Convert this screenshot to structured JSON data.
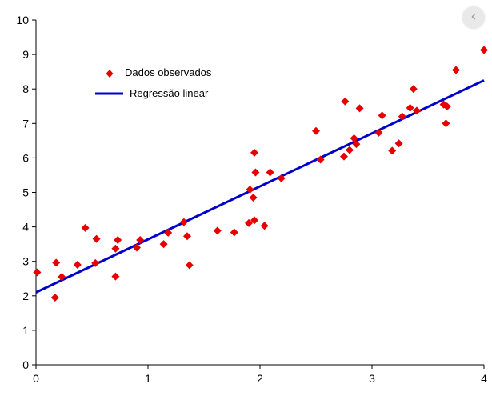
{
  "overlay": {
    "icon": "chevron-left-icon",
    "glyph": "‹"
  },
  "chart_data": {
    "type": "scatter",
    "title": "",
    "xlabel": "",
    "ylabel": "",
    "xlim": [
      0,
      4
    ],
    "ylim": [
      0,
      10
    ],
    "xticks": [
      0,
      1,
      2,
      3,
      4
    ],
    "yticks": [
      0,
      1,
      2,
      3,
      4,
      5,
      6,
      7,
      8,
      9,
      10
    ],
    "grid": false,
    "legend": {
      "placement": "top-left"
    },
    "series": [
      {
        "name": "Dados observados",
        "kind": "scatter",
        "marker": "diamond",
        "color": "#e60000",
        "points": [
          [
            0.01,
            2.68
          ],
          [
            0.17,
            1.95
          ],
          [
            0.18,
            2.96
          ],
          [
            0.23,
            2.55
          ],
          [
            0.37,
            2.9
          ],
          [
            0.44,
            3.97
          ],
          [
            0.53,
            2.95
          ],
          [
            0.54,
            3.65
          ],
          [
            0.71,
            2.56
          ],
          [
            0.71,
            3.37
          ],
          [
            0.73,
            3.62
          ],
          [
            0.9,
            3.4
          ],
          [
            0.93,
            3.62
          ],
          [
            1.14,
            3.5
          ],
          [
            1.18,
            3.83
          ],
          [
            1.32,
            4.14
          ],
          [
            1.35,
            3.73
          ],
          [
            1.37,
            2.89
          ],
          [
            1.62,
            3.89
          ],
          [
            1.77,
            3.84
          ],
          [
            1.9,
            4.11
          ],
          [
            1.91,
            5.08
          ],
          [
            1.94,
            4.85
          ],
          [
            1.95,
            6.15
          ],
          [
            1.95,
            4.19
          ],
          [
            1.96,
            5.58
          ],
          [
            2.04,
            4.03
          ],
          [
            2.09,
            5.58
          ],
          [
            2.19,
            5.41
          ],
          [
            2.5,
            6.78
          ],
          [
            2.54,
            5.95
          ],
          [
            2.75,
            6.04
          ],
          [
            2.76,
            7.64
          ],
          [
            2.8,
            6.23
          ],
          [
            2.84,
            6.57
          ],
          [
            2.86,
            6.4
          ],
          [
            2.89,
            7.44
          ],
          [
            3.06,
            6.73
          ],
          [
            3.09,
            7.23
          ],
          [
            3.18,
            6.21
          ],
          [
            3.24,
            6.42
          ],
          [
            3.27,
            7.2
          ],
          [
            3.34,
            7.45
          ],
          [
            3.37,
            8.0
          ],
          [
            3.4,
            7.37
          ],
          [
            3.64,
            7.55
          ],
          [
            3.66,
            7.0
          ],
          [
            3.67,
            7.49
          ],
          [
            3.75,
            8.55
          ],
          [
            4.0,
            9.13
          ]
        ]
      },
      {
        "name": "Regressão linear",
        "kind": "line",
        "color": "#0000cc",
        "points": [
          [
            0,
            2.1
          ],
          [
            4,
            8.25
          ]
        ]
      }
    ]
  }
}
